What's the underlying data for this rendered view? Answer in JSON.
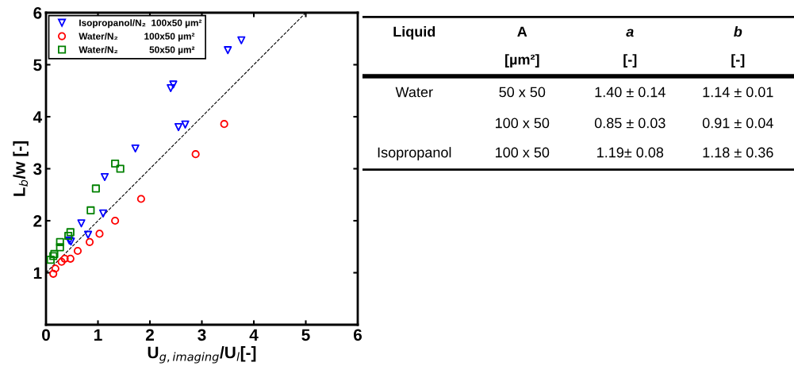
{
  "chart_data": [
    {
      "type": "scatter",
      "xlabel": "U$_{g,imaging}$/U$_{l}$[-]",
      "ylabel": "L$_{b}$/w [-]",
      "xlim": [
        0,
        6
      ],
      "ylim": [
        0,
        6
      ],
      "xticks": [
        0,
        1,
        2,
        3,
        4,
        5,
        6
      ],
      "yticks": [
        {
          "value": 0,
          "label": null
        },
        1,
        2,
        3,
        4,
        5,
        6
      ],
      "grid": false,
      "legend": "top left",
      "series": [
        {
          "name": "Isopropanol/N₂  100x50 µm²",
          "color": "#0000ff",
          "marker": "triangle",
          "x": [
            3.76,
            3.5,
            2.45,
            2.4,
            2.68,
            2.55,
            1.72,
            1.13,
            1.1,
            0.68,
            0.81,
            0.45,
            0.48
          ],
          "values": [
            5.47,
            5.28,
            4.62,
            4.55,
            3.85,
            3.8,
            3.39,
            2.84,
            2.14,
            1.95,
            1.73,
            1.62,
            1.6
          ]
        },
        {
          "name": "Water/N₂          100x50 µm²",
          "color": "#ff0000",
          "marker": "circle",
          "x": [
            3.43,
            2.88,
            1.83,
            1.33,
            1.03,
            0.84,
            0.61,
            0.47,
            0.36,
            0.3,
            0.18,
            0.14
          ],
          "values": [
            3.86,
            3.28,
            2.42,
            2.0,
            1.75,
            1.59,
            1.42,
            1.27,
            1.27,
            1.21,
            1.08,
            0.98
          ]
        },
        {
          "name": "Water/N₂            50x50 µm²",
          "color": "#008000",
          "marker": "square",
          "x": [
            1.33,
            1.43,
            0.96,
            0.86,
            0.47,
            0.43,
            0.27,
            0.27,
            0.16,
            0.14,
            0.09
          ],
          "values": [
            3.1,
            3.0,
            2.62,
            2.2,
            1.78,
            1.71,
            1.59,
            1.49,
            1.36,
            1.32,
            1.25
          ]
        },
        {
          "type": "line",
          "color": "#000000",
          "line_style": "dashed",
          "marker": "none",
          "x": [
            0,
            5
          ],
          "values": [
            1,
            6
          ]
        }
      ]
    },
    {
      "type": "other",
      "annotations": [
        "Liquid",
        "A",
        "a",
        "b",
        null,
        "[µm²]",
        "[-]",
        "[-]",
        "Water",
        "50 x 50",
        "1.40 ± 0.14",
        "1.14 ± 0.01",
        null,
        "100 x 50",
        "0.85 ± 0.03",
        "0.91 ± 0.04",
        "Isopropanol",
        "100 x 50",
        "1.19± 0.08",
        "1.18 ± 0.36"
      ]
    }
  ]
}
